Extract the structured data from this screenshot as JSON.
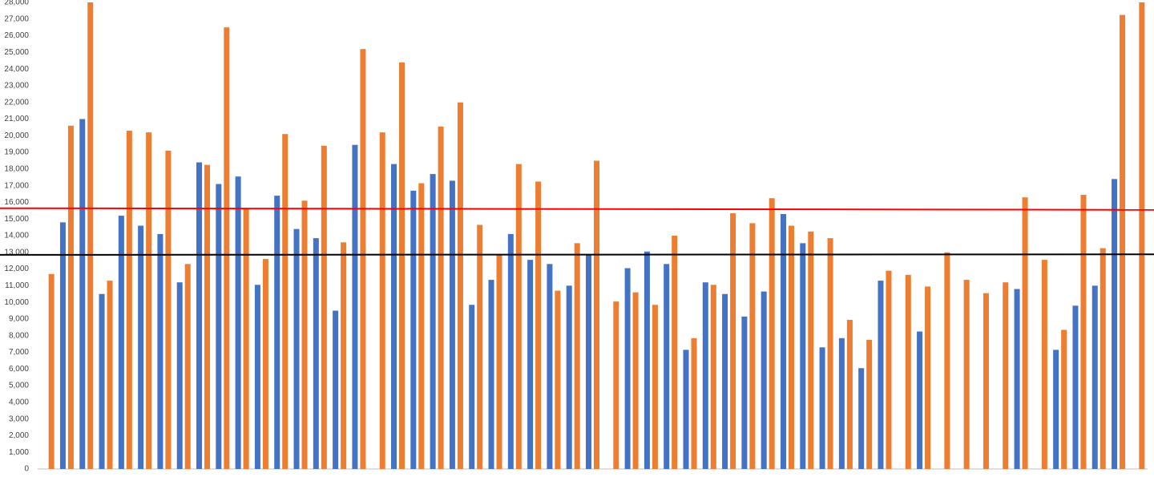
{
  "chart_data": {
    "type": "bar",
    "categories": [
      null,
      null,
      null,
      null,
      null,
      null,
      null,
      null,
      null,
      null,
      null,
      null,
      null,
      null,
      null,
      null,
      null,
      null,
      null,
      null,
      null,
      null,
      null,
      null,
      null,
      null,
      null,
      null,
      null,
      null,
      null,
      null,
      null,
      null,
      null,
      null,
      null,
      null,
      null,
      null,
      null,
      null,
      null,
      null,
      null,
      null,
      null,
      null,
      null,
      null,
      null,
      null,
      null,
      null,
      null,
      null,
      null
    ],
    "series": [
      {
        "color": "#4472c4",
        "values": [
          null,
          14800,
          21000,
          10500,
          15200,
          14600,
          14100,
          11200,
          18400,
          17100,
          17550,
          11050,
          16400,
          14400,
          13850,
          9500,
          19450,
          null,
          18300,
          16700,
          17700,
          17300,
          9850,
          11350,
          14100,
          12550,
          12300,
          11000,
          12850,
          null,
          12050,
          13050,
          12300,
          7150,
          11200,
          10500,
          9150,
          10650,
          15300,
          13550,
          7300,
          7850,
          6050,
          11300,
          null,
          8250,
          null,
          null,
          null,
          null,
          10800,
          null,
          7150,
          9800,
          11000,
          17400,
          null
        ]
      },
      {
        "color": "#ed7d31",
        "values": [
          11700,
          20600,
          28000,
          11300,
          20300,
          20200,
          19100,
          12300,
          18250,
          26500,
          15650,
          12600,
          20100,
          16100,
          19400,
          13600,
          25200,
          20200,
          24400,
          17150,
          20550,
          22000,
          14650,
          12850,
          18300,
          17250,
          10700,
          13550,
          18500,
          10050,
          10600,
          9850,
          14000,
          7850,
          11050,
          15350,
          14750,
          16250,
          14600,
          14250,
          13850,
          8950,
          7750,
          11900,
          11650,
          10950,
          13000,
          11350,
          10550,
          11200,
          16300,
          12550,
          8350,
          16450,
          13250,
          27250,
          28000
        ]
      }
    ],
    "reference_lines": [
      {
        "color": "#ff0000",
        "values": [
          15650,
          15550
        ]
      },
      {
        "color": "#000000",
        "values": [
          12850,
          12880
        ]
      }
    ],
    "ylim": [
      0,
      28000
    ],
    "yticks": [
      0,
      {
        "value": 1000,
        "label": "1,000"
      },
      {
        "value": 2000,
        "label": "2,000"
      },
      {
        "value": 3000,
        "label": "3,000"
      },
      {
        "value": 4000,
        "label": "4,000"
      },
      {
        "value": 5000,
        "label": "5,000"
      },
      {
        "value": 6000,
        "label": "6,000"
      },
      {
        "value": 7000,
        "label": "7,000"
      },
      {
        "value": 8000,
        "label": "8,000"
      },
      {
        "value": 9000,
        "label": "9,000"
      },
      {
        "value": 10000,
        "label": "10,000"
      },
      {
        "value": 11000,
        "label": "11,000"
      },
      {
        "value": 12000,
        "label": "12,000"
      },
      {
        "value": 13000,
        "label": "13,000"
      },
      {
        "value": 14000,
        "label": "14,000"
      },
      {
        "value": 15000,
        "label": "15,000"
      },
      {
        "value": 16000,
        "label": "16,000"
      },
      {
        "value": 17000,
        "label": "17,000"
      },
      {
        "value": 18000,
        "label": "18,000"
      },
      {
        "value": 19000,
        "label": "19,000"
      },
      {
        "value": 20000,
        "label": "20,000"
      },
      {
        "value": 21000,
        "label": "21,000"
      },
      {
        "value": 22000,
        "label": "22,000"
      },
      {
        "value": 23000,
        "label": "23,000"
      },
      {
        "value": 24000,
        "label": "24,000"
      },
      {
        "value": 25000,
        "label": "25,000"
      },
      {
        "value": 26000,
        "label": "26,000"
      },
      {
        "value": 27000,
        "label": "27,000"
      },
      {
        "value": 28000,
        "label": "28,000"
      }
    ],
    "grid": false
  }
}
